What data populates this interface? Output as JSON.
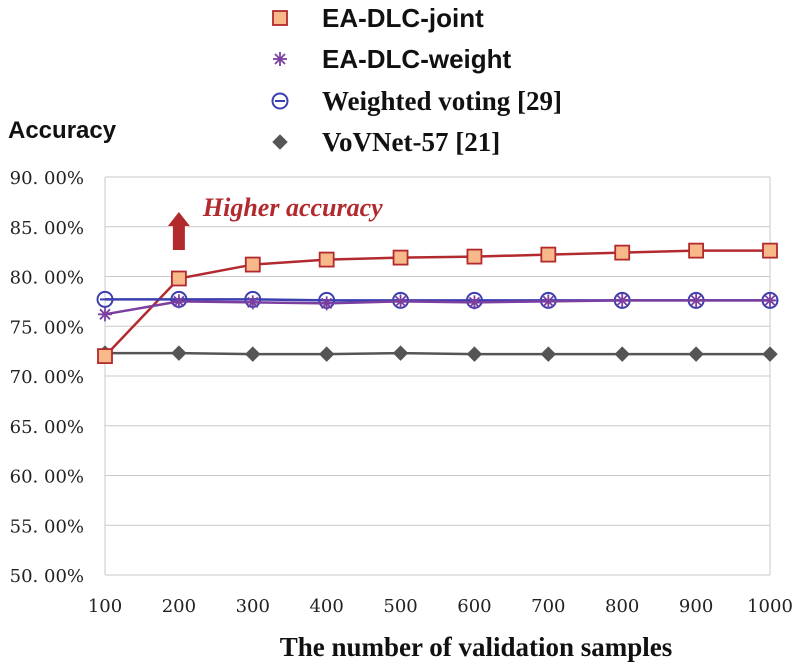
{
  "chart_data": {
    "type": "line",
    "title": "",
    "xlabel": "The number of validation samples",
    "ylabel": "Accuracy",
    "x": [
      100,
      200,
      300,
      400,
      500,
      600,
      700,
      800,
      900,
      1000
    ],
    "x_ticks": [
      "100",
      "200",
      "300",
      "400",
      "500",
      "600",
      "700",
      "800",
      "900",
      "1000"
    ],
    "ylim": [
      50,
      90
    ],
    "y_ticks": [
      50,
      55,
      60,
      65,
      70,
      75,
      80,
      85,
      90
    ],
    "y_tick_labels": [
      "50. 00%",
      "55. 00%",
      "60. 00%",
      "65. 00%",
      "70. 00%",
      "75. 00%",
      "80. 00%",
      "85. 00%",
      "90. 00%"
    ],
    "grid": true,
    "legend_position": "top",
    "series": [
      {
        "name": "EA-DLC-joint",
        "marker": "square",
        "color": "#b22a2e",
        "fill": "#f7b98a",
        "values": [
          72.0,
          79.8,
          81.2,
          81.7,
          81.9,
          82.0,
          82.2,
          82.4,
          82.6,
          82.6
        ]
      },
      {
        "name": "EA-DLC-weight",
        "marker": "asterisk",
        "color": "#7b3fa0",
        "fill": "none",
        "values": [
          76.2,
          77.5,
          77.4,
          77.3,
          77.5,
          77.4,
          77.5,
          77.6,
          77.6,
          77.6
        ]
      },
      {
        "name": "Weighted voting [29]",
        "marker": "circle-minus",
        "color": "#3b3fb0",
        "fill": "none",
        "values": [
          77.7,
          77.7,
          77.7,
          77.6,
          77.6,
          77.6,
          77.6,
          77.6,
          77.6,
          77.6
        ]
      },
      {
        "name": "VoVNet-57 [21]",
        "marker": "diamond",
        "color": "#555555",
        "fill": "#555555",
        "values": [
          72.3,
          72.3,
          72.2,
          72.2,
          72.3,
          72.2,
          72.2,
          72.2,
          72.2,
          72.2
        ]
      }
    ],
    "annotation": {
      "text": "Higher accuracy",
      "color": "#b22a2e",
      "x": 200,
      "y": 87.0
    }
  }
}
